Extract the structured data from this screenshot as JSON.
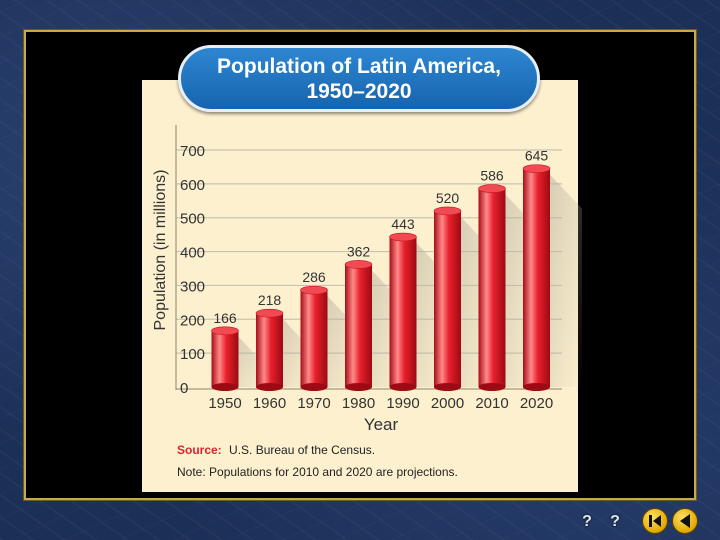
{
  "chart_data": {
    "type": "bar",
    "title_line1": "Population of Latin America,",
    "title_line2": "1950–2020",
    "categories": [
      "1950",
      "1960",
      "1970",
      "1980",
      "1990",
      "2000",
      "2010",
      "2020"
    ],
    "values": [
      166,
      218,
      286,
      362,
      443,
      520,
      586,
      645
    ],
    "data_labels": [
      "166",
      "218",
      "286",
      "362",
      "443",
      "520",
      "586",
      "645"
    ],
    "ylabel": "Population (in millions)",
    "xlabel": "Year",
    "yticks": [
      "0",
      "100",
      "200",
      "300",
      "400",
      "500",
      "600",
      "700"
    ],
    "ylim": [
      0,
      700
    ],
    "grid": true,
    "source_label": "Source:",
    "source_text": "U.S. Bureau of the Census.",
    "note": "Note: Populations for 2010 and 2020 are projections.",
    "colors": {
      "bar": "#e8202c",
      "bar_highlight": "#ff8a8a",
      "bar_dark": "#a80c16",
      "title_bg": "#1f74c0",
      "card_bg": "#fdf0cf",
      "grid": "#c9c4b0",
      "source_label": "#d8242a"
    }
  },
  "navigation": {
    "icons": [
      "help-icon",
      "question-icon",
      "first-slide-icon",
      "previous-slide-icon"
    ]
  }
}
